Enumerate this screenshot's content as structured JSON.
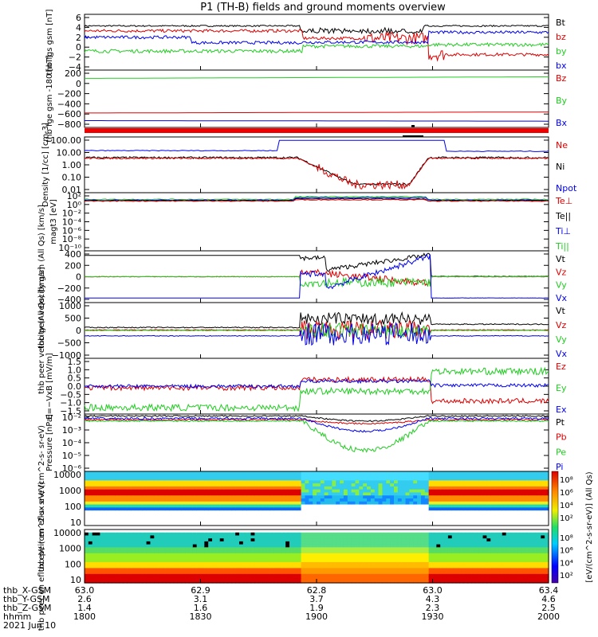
{
  "title": "P1 (TH-B) fields and ground moments overview",
  "colors": {
    "black": "#000000",
    "red": "#dd0000",
    "green": "#22cc22",
    "blue": "#0000ee",
    "orange": "#ff8800"
  },
  "chart_data": {
    "type": "line",
    "x_tick_labels": [
      "1800",
      "1830",
      "1900",
      "1930",
      "2000"
    ],
    "x_range_hhmm": [
      "1800",
      "2000"
    ],
    "footer": {
      "rows": [
        {
          "label": "thb_X-GSM",
          "values": [
            "63.0",
            "62.9",
            "62.8",
            "63.0",
            "63.4"
          ]
        },
        {
          "label": "thb_Y-GSM",
          "values": [
            "2.6",
            "3.1",
            "3.7",
            "4.3",
            "4.6"
          ]
        },
        {
          "label": "thb_Z-GSM",
          "values": [
            "1.4",
            "1.6",
            "1.9",
            "2.3",
            "2.5"
          ]
        },
        {
          "label": "hhmm",
          "values": [
            "1800",
            "1830",
            "1900",
            "1930",
            "2000"
          ]
        }
      ],
      "date": "2021 Jun 10"
    },
    "panels": [
      {
        "id": "fgs",
        "ylabel": "thb fgs gsm [nT]",
        "yticks": [
          "6",
          "4",
          "2",
          "0",
          "−2",
          "−4"
        ],
        "legend": [
          "Bt",
          "bz",
          "by",
          "bx"
        ],
        "legend_colors": [
          "black",
          "red",
          "green",
          "blue"
        ]
      },
      {
        "id": "fge",
        "ylabel": "thb fge gsm -180 [nT]",
        "yticks": [
          "200",
          "0",
          "−200",
          "−400",
          "−600",
          "−800"
        ],
        "legend": [
          "Bz",
          "By",
          "Bx"
        ],
        "legend_colors": [
          "red",
          "green",
          "blue"
        ]
      },
      {
        "id": "density",
        "ylabel": "Density [1/cc] [cm-3]",
        "yticks": [
          "100.00",
          "10.00",
          "1.00",
          "0.10",
          "0.01"
        ],
        "legend": [
          "Ne",
          "Ni",
          "Npot"
        ],
        "legend_colors": [
          "red",
          "black",
          "blue"
        ]
      },
      {
        "id": "temp",
        "ylabel": "magt3 [eV]",
        "yticks": [
          "10²",
          "10⁰",
          "10⁻²",
          "10⁻⁴",
          "10⁻⁶",
          "10⁻⁸",
          "10⁻¹⁰"
        ],
        "legend": [
          "Te⊥",
          "Te||",
          "Ti⊥",
          "Ti||"
        ],
        "legend_colors": [
          "red",
          "black",
          "blue",
          "green"
        ]
      },
      {
        "id": "peir_vel",
        "ylabel": "thb peir velocity gsm (All Qs) [km/s]",
        "yticks": [
          "400",
          "200",
          "0",
          "−200",
          "−400"
        ],
        "legend": [
          "Vt",
          "Vz",
          "Vy",
          "Vx"
        ],
        "legend_colors": [
          "black",
          "red",
          "green",
          "blue"
        ]
      },
      {
        "id": "peer_vel",
        "ylabel": "thb peer velocity (All Qs) [km/s]",
        "yticks": [
          "1000",
          "500",
          "0",
          "−500",
          "−1000"
        ],
        "legend": [
          "Vt",
          "Vz",
          "Vy",
          "Vx"
        ],
        "legend_colors": [
          "black",
          "red",
          "green",
          "blue"
        ]
      },
      {
        "id": "efield",
        "ylabel": "E=−VxB [mV/m]",
        "yticks": [
          "1.5",
          "1.0",
          "0.5",
          "0.0",
          "−0.5",
          "−1.0",
          "−1.5"
        ],
        "legend": [
          "Ez",
          "Ey",
          "Ex"
        ],
        "legend_colors": [
          "red",
          "green",
          "blue"
        ]
      },
      {
        "id": "pressure",
        "ylabel": "Pressure [nPa]",
        "yticks": [
          "10⁻²",
          "10⁻³",
          "10⁻⁴",
          "10⁻⁵",
          "10⁻⁶"
        ],
        "legend": [
          "Pt",
          "Pb",
          "Pe",
          "Pi"
        ],
        "legend_colors": [
          "black",
          "red",
          "green",
          "blue"
        ]
      },
      {
        "id": "peir_spec",
        "ylabel": "thb peir en eflux eV/ (cm^2-s- sr-eV)",
        "yticks": [
          "10000",
          "1000",
          "100",
          "10"
        ],
        "colorbar_ticks": [
          "10⁸",
          "10⁶",
          "10⁴",
          "10²"
        ]
      },
      {
        "id": "peer_spec",
        "ylabel": "thb peer en eflux eV/ (cm^2-s- sr-eV)",
        "yticks": [
          "10000",
          "1000",
          "100",
          "10"
        ],
        "colorbar_ticks": [
          "10⁸",
          "10⁶",
          "10⁴",
          "10²"
        ]
      }
    ],
    "colorbar_label": "[eV/(cm^2-s-sr-eV)] (All Qs)"
  }
}
